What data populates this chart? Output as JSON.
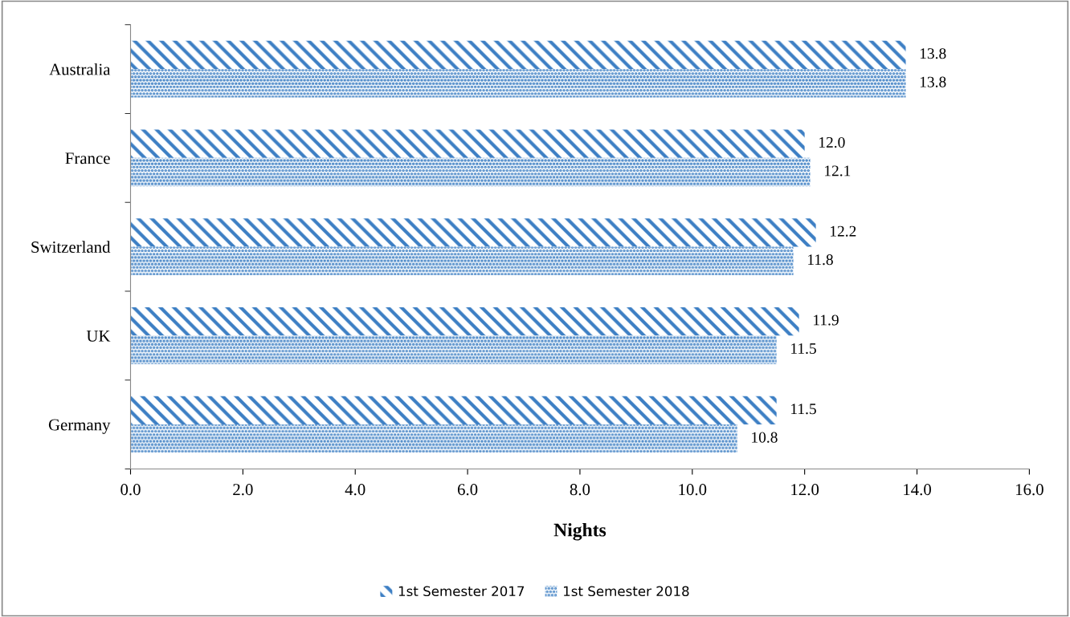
{
  "chart_data": {
    "type": "bar",
    "orientation": "horizontal",
    "xlabel": "Nights",
    "categories": [
      "Australia",
      "France",
      "Switzerland",
      "UK",
      "Germany"
    ],
    "series": [
      {
        "name": "1st Semester 2017",
        "color": "#3d7fc4",
        "values": [
          13.8,
          12.0,
          12.2,
          11.9,
          11.5
        ],
        "value_labels": [
          "13.8",
          "12.0",
          "12.2",
          "11.9",
          "11.5"
        ]
      },
      {
        "name": "1st Semester 2018",
        "color": "#3d7fc4",
        "values": [
          13.8,
          12.1,
          11.8,
          11.5,
          10.8
        ],
        "value_labels": [
          "13.8",
          "12.1",
          "11.8",
          "11.5",
          "10.8"
        ]
      }
    ],
    "xlim": [
      0,
      16
    ],
    "xticks": [
      {
        "value": 0,
        "label": "0.0"
      },
      {
        "value": 2,
        "label": "2.0"
      },
      {
        "value": 4,
        "label": "4.0"
      },
      {
        "value": 6,
        "label": "6.0"
      },
      {
        "value": 8,
        "label": "8.0"
      },
      {
        "value": 10,
        "label": "10.0"
      },
      {
        "value": 12,
        "label": "12.0"
      },
      {
        "value": 14,
        "label": "14.0"
      },
      {
        "value": 16,
        "label": "16.0"
      }
    ],
    "legend": "bottom",
    "grid": false
  }
}
